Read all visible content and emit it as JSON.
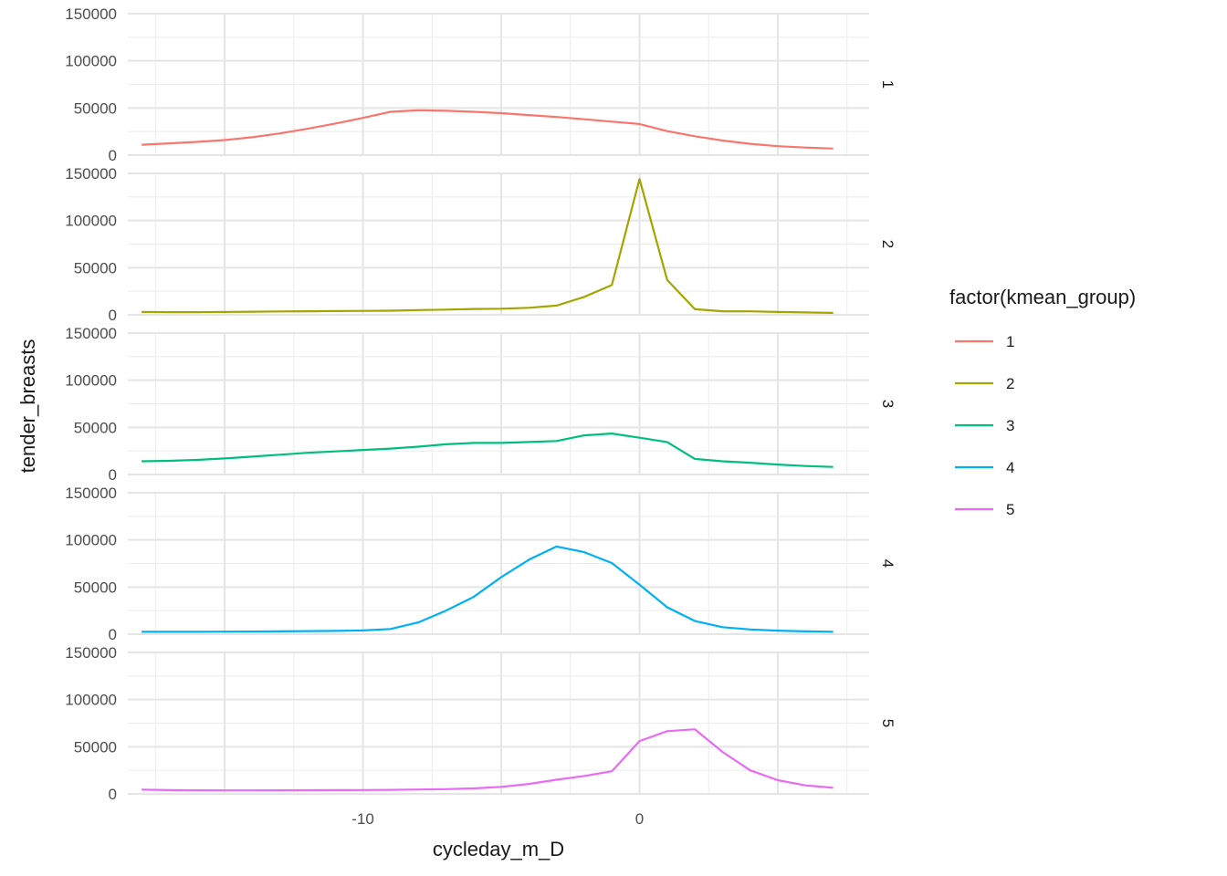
{
  "chart_data": {
    "type": "line",
    "layout": "facet_grid_rows",
    "title": "",
    "xlabel": "cycleday_m_D",
    "ylabel": "tender_breasts",
    "xlim": [
      -18.5,
      8.3
    ],
    "ylim": [
      0,
      150000
    ],
    "x_ticks": [
      -10,
      0
    ],
    "y_ticks": [
      0,
      50000,
      100000,
      150000
    ],
    "grid": true,
    "legend": {
      "title": "factor(kmean_group)",
      "position": "right"
    },
    "x": [
      -18,
      -17,
      -16,
      -15,
      -14,
      -13,
      -12,
      -11,
      -10,
      -9,
      -8,
      -7,
      -6,
      -5,
      -4,
      -3,
      -2,
      -1,
      0,
      1,
      2,
      3,
      4,
      5,
      6,
      7
    ],
    "series": [
      {
        "name": "1",
        "facet": "1",
        "color": "#F8766D",
        "values": [
          11000,
          12500,
          14000,
          16000,
          19000,
          23000,
          28000,
          33500,
          39500,
          46000,
          47500,
          47000,
          46000,
          44500,
          42500,
          40500,
          38000,
          35500,
          33000,
          25500,
          20000,
          15500,
          12000,
          9500,
          8000,
          7000
        ]
      },
      {
        "name": "2",
        "facet": "2",
        "color": "#A3A500",
        "values": [
          3000,
          2800,
          2800,
          3000,
          3300,
          3600,
          3800,
          4000,
          4200,
          4400,
          5000,
          5500,
          6200,
          6500,
          7500,
          9800,
          19000,
          31500,
          144000,
          37000,
          6000,
          3800,
          3700,
          3000,
          2500,
          2000
        ]
      },
      {
        "name": "3",
        "facet": "3",
        "color": "#00BF7D",
        "values": [
          14000,
          14500,
          15500,
          17000,
          19000,
          21000,
          23000,
          24500,
          26000,
          27500,
          29500,
          32000,
          33500,
          33500,
          34500,
          35500,
          41500,
          43500,
          39000,
          34500,
          16500,
          14000,
          12500,
          10500,
          9000,
          8000
        ]
      },
      {
        "name": "4",
        "facet": "4",
        "color": "#00B0F6",
        "values": [
          2500,
          2500,
          2500,
          2700,
          2800,
          3000,
          3300,
          3500,
          4000,
          5500,
          12500,
          25000,
          39500,
          60500,
          79000,
          93000,
          87000,
          75500,
          52500,
          28500,
          14000,
          7500,
          5000,
          3800,
          3000,
          2500
        ]
      },
      {
        "name": "5",
        "facet": "5",
        "color": "#E76BF3",
        "values": [
          4500,
          4000,
          3800,
          3700,
          3700,
          3800,
          3900,
          4000,
          4100,
          4300,
          4600,
          5000,
          5800,
          7500,
          10500,
          15000,
          19000,
          24000,
          56000,
          66500,
          68500,
          44500,
          25000,
          14500,
          9000,
          6500
        ]
      }
    ]
  }
}
